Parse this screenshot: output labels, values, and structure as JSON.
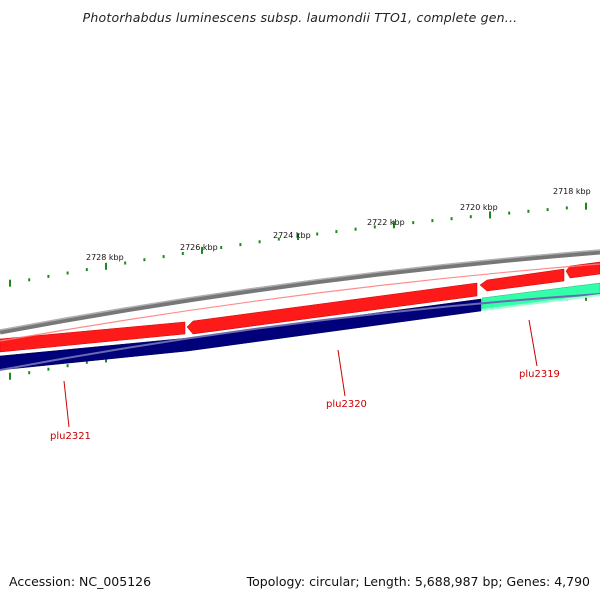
{
  "title": "Photorhabdus luminescens subsp. laumondii TTO1, complete gen...",
  "footer": {
    "accession": "Accession: NC_005126",
    "stats": "Topology: circular; Length: 5,688,987 bp; Genes: 4,790"
  },
  "colors": {
    "backbone": "#888888",
    "forward_cds": "#ff0000",
    "reverse_cds": "#000080",
    "reverse_cds_alt": "#33ffaa",
    "gc_skew": "#1a8a1a",
    "label": "#cc0000"
  },
  "ruler_labels": [
    "2728 kbp",
    "2726 kbp",
    "2724 kbp",
    "2722 kbp",
    "2720 kbp",
    "2718 kbp"
  ],
  "genes": [
    {
      "name": "plu2321"
    },
    {
      "name": "plu2320"
    },
    {
      "name": "plu2319"
    }
  ]
}
